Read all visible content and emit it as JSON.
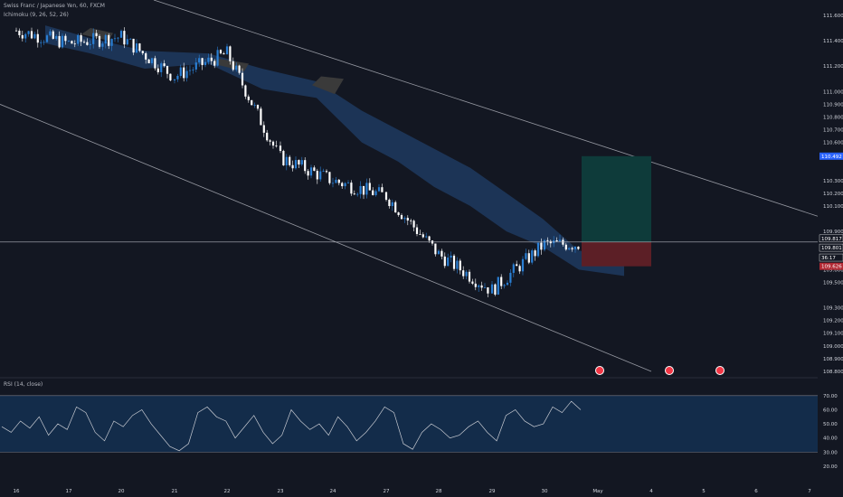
{
  "header": {
    "title": "Swiss Franc / Japanese Yen, 60, FXCM",
    "ichimoku_label": "Ichimoku (9, 26, 52, 26)",
    "rsi_label": "RSI (14, close)"
  },
  "colors": {
    "background": "#131722",
    "candle_up": "#2a7fd4",
    "candle_down": "#ffffff",
    "cloud_bull": "#1e3a5f",
    "cloud_bear": "#3a3a3a",
    "channel_line": "#9598a1",
    "profit_zone": "#0e3b3a",
    "loss_zone": "#5c1f26",
    "rsi_band": "#132c4a",
    "rsi_line": "#c8cbd2"
  },
  "price_scale": {
    "ticks": [
      "111.600",
      "111.400",
      "111.200",
      "111.000",
      "110.900",
      "110.800",
      "110.700",
      "110.600",
      "110.500",
      "110.300",
      "110.200",
      "110.100",
      "109.900",
      "109.700",
      "109.600",
      "109.500",
      "109.300",
      "109.200",
      "109.100",
      "109.000",
      "108.900",
      "108.800"
    ],
    "tags": [
      {
        "label": "110.492",
        "color": "#2962ff",
        "text_color": "#ffffff"
      },
      {
        "label": "109.817",
        "color": "#131722",
        "text_color": "#ffffff"
      },
      {
        "label": "109.801",
        "color": "#131722",
        "text_color": "#ffffff"
      },
      {
        "label": "36:17",
        "color": "#131722",
        "text_color": "#ffffff"
      },
      {
        "label": "109.626",
        "color": "#b22833",
        "text_color": "#ffffff"
      }
    ]
  },
  "time_scale": {
    "ticks": [
      "16",
      "17",
      "20",
      "21",
      "22",
      "23",
      "24",
      "27",
      "28",
      "29",
      "30",
      "May",
      "4",
      "5",
      "6",
      "7"
    ]
  },
  "rsi_scale": {
    "ticks": [
      "70.00",
      "60.00",
      "50.00",
      "40.00",
      "30.00",
      "20.00"
    ]
  },
  "chart_data": [
    {
      "type": "line",
      "title": "Swiss Franc / Japanese Yen, 60, FXCM",
      "description_series": [
        {
          "name": "",
          "x": [
            "16",
            "17",
            "20",
            "21",
            "22",
            "23",
            "24",
            "27",
            "28",
            "29",
            "30"
          ],
          "values": [
            111.48,
            111.38,
            111.43,
            111.12,
            111.3,
            110.48,
            110.3,
            110.18,
            109.72,
            109.44,
            109.8
          ]
        }
      ],
      "horizontal_line": 109.817,
      "position": {
        "entry": 109.817,
        "target": 110.492,
        "stop": 109.626
      },
      "ylim": [
        108.75,
        111.72
      ]
    },
    {
      "type": "line",
      "title": "RSI (14, close)",
      "series": [
        {
          "name": "",
          "values": [
            48,
            44,
            52,
            47,
            55,
            42,
            50,
            46,
            62,
            58,
            44,
            38,
            52,
            48,
            56,
            60,
            50,
            42,
            34,
            31,
            36,
            58,
            62,
            55,
            52,
            40,
            48,
            56,
            44,
            36,
            42,
            60,
            52,
            46,
            50,
            42,
            55,
            48,
            38,
            44,
            52,
            62,
            58,
            36,
            32,
            44,
            50,
            46,
            40,
            42,
            48,
            52,
            44,
            38,
            56,
            60,
            52,
            48,
            50,
            62,
            58,
            66,
            60
          ]
        }
      ],
      "ylim": [
        20,
        75
      ],
      "band": [
        30,
        70
      ]
    }
  ]
}
